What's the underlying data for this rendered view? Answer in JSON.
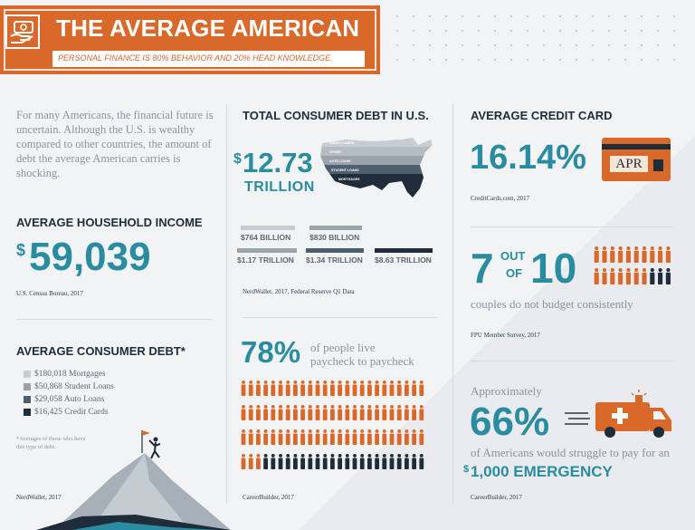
{
  "banner": {
    "title": "THE AVERAGE AMERICAN",
    "subtitle": "PERSONAL FINANCE IS 80% BEHAVIOR AND 20% HEAD KNOWLEDGE."
  },
  "intro": "For many Americans, the financial future is uncertain. Although the U.S. is wealthy compared to other countries, the amount of debt the average American carries is shocking.",
  "household_income": {
    "heading": "AVERAGE HOUSEHOLD INCOME",
    "dollar": "$",
    "value": "59,039",
    "source": "U.S. Census Bureau, 2017"
  },
  "consumer_debt": {
    "heading": "AVERAGE CONSUMER DEBT*",
    "items": [
      {
        "label": "$180,018 Mortgages",
        "color": "#c9cdd1"
      },
      {
        "label": "$50,868 Student Loans",
        "color": "#9aa3ab"
      },
      {
        "label": "$29,058 Auto Loans",
        "color": "#4f5f6d"
      },
      {
        "label": "$16,425 Credit Cards",
        "color": "#1f2d3a"
      }
    ],
    "note": "*Averages of those who have this type of debt.",
    "source": "NerdWallet, 2017"
  },
  "total_debt": {
    "heading": "TOTAL CONSUMER DEBT IN U.S.",
    "dollar": "$",
    "value": "12.73",
    "unit": "TRILLION",
    "map_labels": [
      "CREDIT CARDS",
      "OTHER",
      "AUTO LOANS",
      "STUDENT LOANS",
      "MORTGAGES"
    ],
    "bars_top": [
      {
        "label": "$764 BILLION",
        "color": "#c9cdd1"
      },
      {
        "label": "$830 BILLION",
        "color": "#9aa3ab"
      }
    ],
    "bars_bottom": [
      {
        "label": "$1.17 TRILLION",
        "color": "#9aa3ab"
      },
      {
        "label": "$1.34 TRILLION",
        "color": "#4f5f6d"
      },
      {
        "label": "$8.63 TRILLION",
        "color": "#1f2d3a"
      }
    ],
    "source": "NerdWallet, 2017, Federal Reserve Q1 Data"
  },
  "paycheck": {
    "value": "78%",
    "text_line1": "of people live",
    "text_line2": "paycheck to paycheck",
    "source": "CareerBuilder, 2017",
    "orange_color": "#d9692a",
    "dark_color": "#1f2d3a",
    "share": 0.78
  },
  "credit_card": {
    "heading": "AVERAGE CREDIT CARD",
    "value": "16.14%",
    "card_label": "APR",
    "source": "CreditCards.com, 2017"
  },
  "budget": {
    "big_left": "7",
    "out": "OUT",
    "of": "OF",
    "big_right": "10",
    "text": "couples do not budget consistently",
    "source": "FPU Member Survey, 2017",
    "count": 7,
    "total": 10
  },
  "emergency": {
    "prefix": "Approximately",
    "value": "66%",
    "text": "of Americans would struggle to pay for an",
    "dollar": "$",
    "amount": "1,000 EMERGENCY",
    "source": "CareerBuilder, 2017"
  },
  "colors": {
    "accent_orange": "#d9692a",
    "teal": "#2a8ca0",
    "navy": "#1f2d3a"
  }
}
